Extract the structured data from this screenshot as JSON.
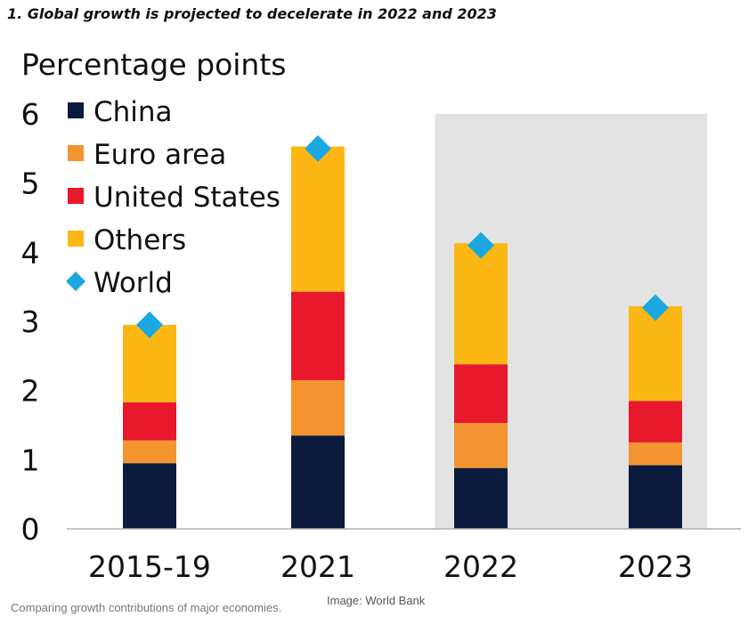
{
  "headline": "1. Global growth is projected to decelerate in 2022 and 2023",
  "caption": "Comparing growth contributions of major economies.",
  "credit": "Image: World Bank",
  "chart_data": {
    "type": "bar",
    "stacked": true,
    "ylabel": "Percentage points",
    "ylim": [
      0,
      6
    ],
    "yticks": [
      0,
      1,
      2,
      3,
      4,
      5,
      6
    ],
    "grid": false,
    "legend_position": "top-left",
    "categories": [
      "2015-19",
      "2021",
      "2022",
      "2023"
    ],
    "shaded_categories": [
      "2022",
      "2023"
    ],
    "shade_color": "#e3e3e3",
    "series": [
      {
        "name": "China",
        "color": "#0b1b3d",
        "values": [
          0.95,
          1.35,
          0.88,
          0.92
        ]
      },
      {
        "name": "Euro area",
        "color": "#f39430",
        "values": [
          0.33,
          0.8,
          0.65,
          0.33
        ]
      },
      {
        "name": "United States",
        "color": "#e8192c",
        "values": [
          0.55,
          1.28,
          0.85,
          0.6
        ]
      },
      {
        "name": "Others",
        "color": "#fbb814",
        "values": [
          1.12,
          2.1,
          1.75,
          1.37
        ]
      }
    ],
    "world": {
      "name": "World",
      "color": "#1ba8e0",
      "values": [
        2.95,
        5.5,
        4.1,
        3.2
      ]
    }
  }
}
